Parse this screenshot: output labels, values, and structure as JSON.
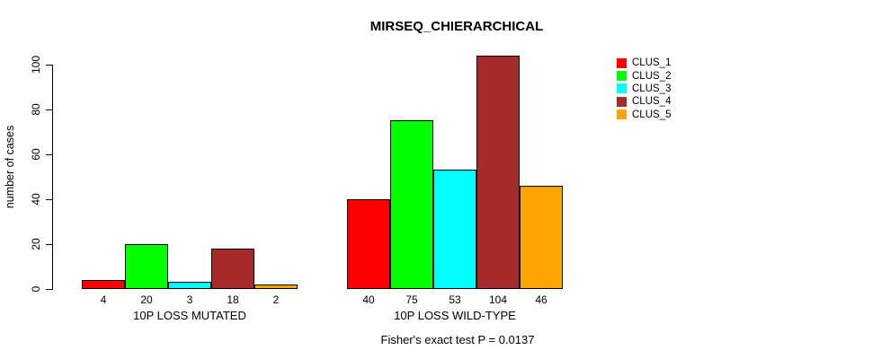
{
  "chart_data": {
    "type": "bar",
    "title": "MIRSEQ_CHIERARCHICAL",
    "ylabel": "number of cases",
    "xlabel": "",
    "ylim": [
      0,
      100
    ],
    "yticks": [
      0,
      20,
      40,
      60,
      80,
      100
    ],
    "grid": false,
    "legend_position": "right-inside",
    "categories": [
      "10P LOSS MUTATED",
      "10P LOSS WILD-TYPE"
    ],
    "series": [
      {
        "name": "CLUS_1",
        "color": "#FF0000",
        "values": [
          4,
          40
        ]
      },
      {
        "name": "CLUS_2",
        "color": "#00FF00",
        "values": [
          20,
          75
        ]
      },
      {
        "name": "CLUS_3",
        "color": "#00FFFF",
        "values": [
          3,
          53
        ]
      },
      {
        "name": "CLUS_4",
        "color": "#A52A2A",
        "values": [
          18,
          104
        ]
      },
      {
        "name": "CLUS_5",
        "color": "#FFA500",
        "values": [
          2,
          46
        ]
      }
    ],
    "bar_value_labels": [
      [
        4,
        20,
        3,
        18,
        2
      ],
      [
        40,
        75,
        53,
        104,
        46
      ]
    ],
    "footnote": "Fisher's exact test P = 0.0137",
    "bar_border_color": "#000000",
    "background_color": "#FFFFFF"
  }
}
